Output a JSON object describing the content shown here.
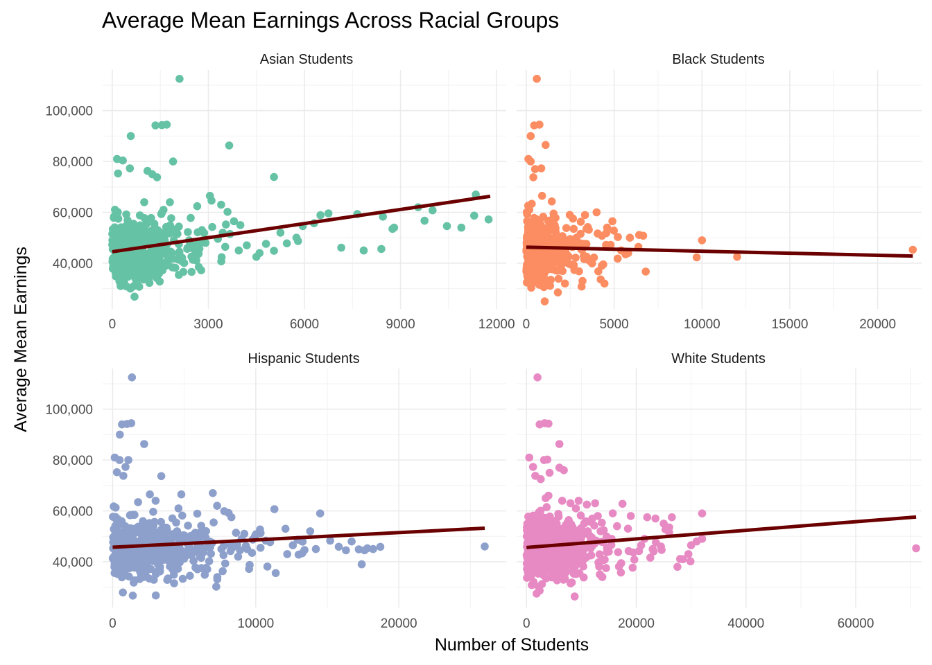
{
  "chart_data": {
    "type": "scatter",
    "title": "Average Mean Earnings Across Racial Groups",
    "xlabel": "Number of Students",
    "ylabel": "Average Mean Earnings",
    "grid": true,
    "y_ticks": [
      "40,000",
      "60,000",
      "80,000",
      "100,000"
    ],
    "y_tick_values": [
      40000,
      60000,
      80000,
      100000
    ],
    "ylim": [
      22000,
      116000
    ],
    "panels": [
      {
        "name": "Asian Students",
        "color": "#66C2A5",
        "xlim": [
          -300,
          12300
        ],
        "x_ticks": [
          0,
          3000,
          6000,
          9000,
          12000
        ],
        "x_tick_labels": [
          "0",
          "3000",
          "6000",
          "9000",
          "12000"
        ],
        "trend": {
          "x": [
            0,
            11800
          ],
          "y": [
            44500,
            66300
          ]
        },
        "outliers": [
          [
            2100,
            112500
          ],
          [
            1350,
            94200
          ],
          [
            1550,
            94300
          ],
          [
            1700,
            94500
          ],
          [
            3650,
            86300
          ],
          [
            580,
            90000
          ],
          [
            150,
            81000
          ],
          [
            330,
            80400
          ],
          [
            1900,
            80000
          ],
          [
            550,
            77300
          ],
          [
            1100,
            76300
          ],
          [
            1250,
            75000
          ],
          [
            1400,
            73800
          ],
          [
            5050,
            73900
          ],
          [
            180,
            75300
          ],
          [
            9550,
            62000
          ],
          [
            10000,
            60800
          ],
          [
            11350,
            67000
          ],
          [
            11300,
            58700
          ],
          [
            11750,
            57200
          ],
          [
            10450,
            54600
          ],
          [
            10900,
            54000
          ],
          [
            9750,
            56700
          ],
          [
            8450,
            58300
          ],
          [
            8750,
            53500
          ],
          [
            8800,
            54000
          ],
          [
            7650,
            59300
          ],
          [
            7150,
            46100
          ],
          [
            7850,
            45000
          ],
          [
            8400,
            45600
          ],
          [
            6750,
            59600
          ],
          [
            6500,
            58900
          ],
          [
            6300,
            55700
          ],
          [
            5950,
            54600
          ],
          [
            5750,
            50000
          ],
          [
            5800,
            48700
          ],
          [
            5450,
            47800
          ],
          [
            5050,
            44900
          ],
          [
            5250,
            52000
          ],
          [
            4600,
            44000
          ],
          [
            4800,
            47600
          ],
          [
            4500,
            42500
          ],
          [
            4200,
            47000
          ],
          [
            3950,
            45000
          ],
          [
            4000,
            55000
          ],
          [
            3800,
            56500
          ],
          [
            3450,
            52000
          ],
          [
            3550,
            55200
          ],
          [
            3100,
            64600
          ],
          [
            3050,
            66500
          ],
          [
            3400,
            63000
          ],
          [
            3600,
            60200
          ],
          [
            2700,
            38500
          ],
          [
            2450,
            57800
          ],
          [
            2600,
            44000
          ],
          [
            2350,
            46000
          ],
          [
            2800,
            53000
          ],
          [
            1600,
            51400
          ],
          [
            1400,
            47300
          ],
          [
            1250,
            46500
          ],
          [
            1800,
            64000
          ],
          [
            1600,
            61000
          ],
          [
            1000,
            64000
          ]
        ]
      },
      {
        "name": "Black Students",
        "color": "#FC8D62",
        "xlim": [
          -550,
          22500
        ],
        "x_ticks": [
          0,
          5000,
          10000,
          15000,
          20000
        ],
        "x_tick_labels": [
          "0",
          "5000",
          "10000",
          "15000",
          "20000"
        ],
        "trend": {
          "x": [
            0,
            22000
          ],
          "y": [
            46300,
            42800
          ]
        },
        "outliers": [
          [
            22000,
            45300
          ],
          [
            10000,
            49000
          ],
          [
            9700,
            42300
          ],
          [
            12000,
            42500
          ],
          [
            6800,
            36700
          ],
          [
            5900,
            50000
          ],
          [
            5800,
            44000
          ],
          [
            5650,
            43500
          ],
          [
            5400,
            45000
          ],
          [
            5200,
            41800
          ],
          [
            4800,
            47200
          ],
          [
            4900,
            56500
          ],
          [
            4600,
            54000
          ],
          [
            4000,
            60000
          ],
          [
            4300,
            39000
          ],
          [
            4450,
            32000
          ],
          [
            4100,
            36800
          ],
          [
            3500,
            54200
          ],
          [
            3100,
            56300
          ],
          [
            3300,
            47600
          ],
          [
            3200,
            33000
          ],
          [
            3150,
            30800
          ],
          [
            2700,
            53500
          ],
          [
            2500,
            49500
          ],
          [
            2200,
            32000
          ],
          [
            1800,
            28500
          ],
          [
            1050,
            25000
          ],
          [
            600,
            112500
          ],
          [
            750,
            94500
          ],
          [
            450,
            94200
          ],
          [
            1100,
            86500
          ],
          [
            250,
            90000
          ],
          [
            120,
            81000
          ],
          [
            250,
            80000
          ],
          [
            500,
            77000
          ],
          [
            850,
            77300
          ],
          [
            400,
            73800
          ],
          [
            900,
            66500
          ],
          [
            1450,
            64300
          ]
        ]
      },
      {
        "name": "Hispanic Students",
        "color": "#8DA0CB",
        "xlim": [
          -700,
          27500
        ],
        "x_ticks": [
          0,
          10000,
          20000
        ],
        "x_tick_labels": [
          "0",
          "10000",
          "20000"
        ],
        "trend": {
          "x": [
            0,
            26000
          ],
          "y": [
            45700,
            53200
          ]
        },
        "outliers": [
          [
            26000,
            46000
          ],
          [
            18200,
            45000
          ],
          [
            17800,
            45300
          ],
          [
            17600,
            44500
          ],
          [
            17200,
            44900
          ],
          [
            17400,
            39000
          ],
          [
            16700,
            48000
          ],
          [
            16300,
            44500
          ],
          [
            15800,
            45900
          ],
          [
            15200,
            48300
          ],
          [
            14500,
            59000
          ],
          [
            14200,
            45000
          ],
          [
            13800,
            52000
          ],
          [
            13000,
            42800
          ],
          [
            12200,
            43000
          ],
          [
            11300,
            60700
          ],
          [
            11000,
            47700
          ],
          [
            10700,
            48300
          ],
          [
            10300,
            52700
          ],
          [
            9400,
            45000
          ],
          [
            9200,
            51000
          ],
          [
            8900,
            44500
          ],
          [
            8700,
            46700
          ],
          [
            8400,
            45700
          ],
          [
            8300,
            57500
          ],
          [
            8100,
            59200
          ],
          [
            7800,
            59900
          ],
          [
            7600,
            45000
          ],
          [
            7300,
            62000
          ],
          [
            7000,
            67000
          ],
          [
            6500,
            49500
          ],
          [
            6200,
            45500
          ],
          [
            5800,
            44500
          ],
          [
            5600,
            48200
          ],
          [
            5400,
            43500
          ],
          [
            5300,
            47000
          ],
          [
            4800,
            66500
          ],
          [
            4600,
            61000
          ],
          [
            4500,
            52000
          ],
          [
            4400,
            38600
          ],
          [
            4900,
            33300
          ],
          [
            3400,
            73700
          ],
          [
            2200,
            86300
          ],
          [
            1350,
            112500
          ],
          [
            1300,
            94500
          ],
          [
            650,
            94000
          ],
          [
            1000,
            94200
          ],
          [
            1100,
            80000
          ],
          [
            500,
            90000
          ],
          [
            150,
            81000
          ],
          [
            480,
            80000
          ],
          [
            900,
            77300
          ],
          [
            300,
            75200
          ],
          [
            750,
            73800
          ],
          [
            3300,
            47600
          ],
          [
            2600,
            66500
          ],
          [
            3000,
            64000
          ],
          [
            3800,
            52500
          ]
        ]
      },
      {
        "name": "White Students",
        "color": "#E78AC3",
        "xlim": [
          -1800,
          72000
        ],
        "x_ticks": [
          0,
          20000,
          40000,
          60000
        ],
        "x_tick_labels": [
          "0",
          "20000",
          "40000",
          "60000"
        ],
        "trend": {
          "x": [
            0,
            71000
          ],
          "y": [
            45600,
            57600
          ]
        },
        "outliers": [
          [
            71000,
            45300
          ],
          [
            32000,
            59000
          ],
          [
            32000,
            49000
          ],
          [
            31000,
            48000
          ],
          [
            30000,
            46500
          ],
          [
            29500,
            43000
          ],
          [
            28500,
            41000
          ],
          [
            27500,
            38000
          ],
          [
            26500,
            57500
          ],
          [
            26000,
            51500
          ],
          [
            26000,
            53500
          ],
          [
            25000,
            55000
          ],
          [
            24500,
            46000
          ],
          [
            23500,
            57000
          ],
          [
            23000,
            45000
          ],
          [
            22000,
            57500
          ],
          [
            21500,
            49000
          ],
          [
            20500,
            44200
          ],
          [
            19000,
            58000
          ],
          [
            18500,
            53000
          ],
          [
            17500,
            62800
          ],
          [
            16500,
            54000
          ],
          [
            15500,
            49000
          ],
          [
            15000,
            44000
          ],
          [
            14500,
            37500
          ],
          [
            13500,
            52000
          ],
          [
            13000,
            58000
          ],
          [
            12500,
            63000
          ],
          [
            12000,
            57000
          ],
          [
            11000,
            62500
          ],
          [
            10500,
            55000
          ],
          [
            9500,
            64000
          ],
          [
            9000,
            61000
          ],
          [
            8000,
            63000
          ],
          [
            7500,
            55500
          ],
          [
            6500,
            64000
          ],
          [
            5500,
            55000
          ],
          [
            4000,
            66000
          ],
          [
            6000,
            86300
          ],
          [
            2000,
            112500
          ],
          [
            3300,
            94500
          ],
          [
            4000,
            94300
          ],
          [
            2400,
            94000
          ],
          [
            3200,
            80000
          ],
          [
            3800,
            80200
          ],
          [
            6000,
            77000
          ],
          [
            6800,
            76000
          ],
          [
            4200,
            75000
          ],
          [
            500,
            81000
          ],
          [
            1200,
            77300
          ],
          [
            1600,
            73800
          ],
          [
            2600,
            72500
          ],
          [
            3500,
            65000
          ]
        ]
      }
    ]
  }
}
